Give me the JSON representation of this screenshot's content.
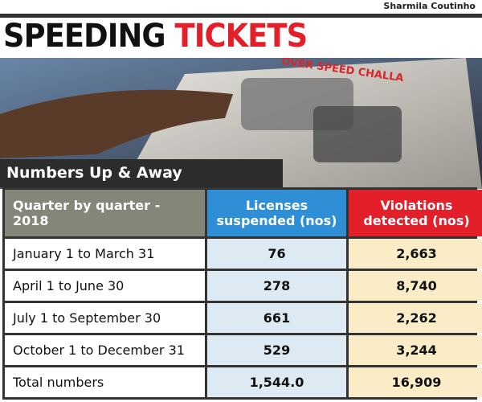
{
  "credit": "Sharmila Coutinho",
  "title": {
    "part1": "SPEEDING",
    "part2": "TICKETS"
  },
  "photo_text": "OVER SPEED CHALLA",
  "subtitle": "Numbers Up & Away",
  "table": {
    "header": [
      "Quarter by quarter - 2018",
      "Licenses suspended (nos)",
      "Violations detected (nos)"
    ],
    "rows": [
      [
        "January 1 to March 31",
        "76",
        "2,663"
      ],
      [
        "April 1 to June 30",
        "278",
        "8,740"
      ],
      [
        "July 1 to September 30",
        "661",
        "2,262"
      ],
      [
        "October 1 to December 31",
        "529",
        "3,244"
      ],
      [
        "Total numbers",
        "1,544.0",
        "16,909"
      ]
    ]
  }
}
